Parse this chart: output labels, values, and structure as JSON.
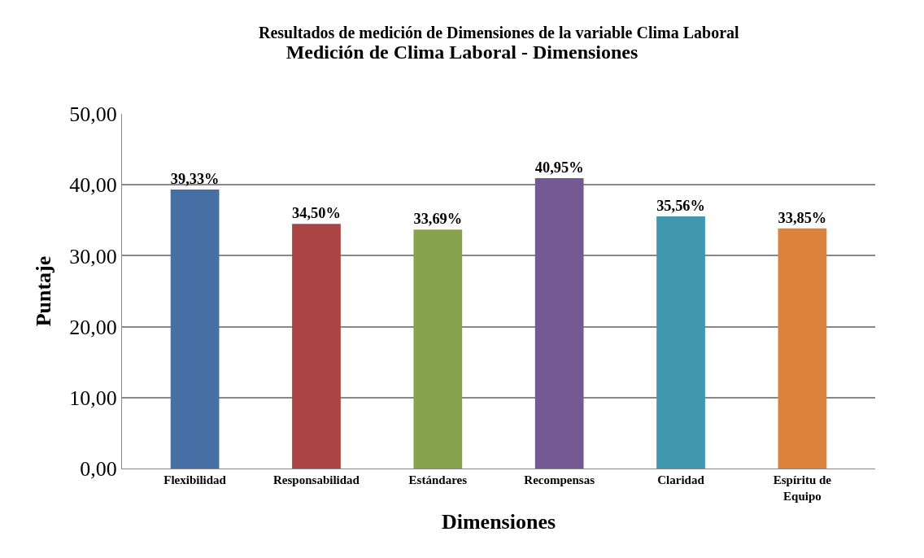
{
  "chart_data": {
    "type": "bar",
    "title": "Medición de Clima Laboral - Dimensiones",
    "xlabel": "Dimensiones",
    "ylabel": "Puntaje",
    "annotations": [
      "Resultados de medición de Dimensiones de la variable Clima Laboral"
    ],
    "categories": [
      "Flexibilidad",
      "Responsabilidad",
      "Estándares",
      "Recompensas",
      "Claridad",
      "Espíritu de Equipo"
    ],
    "values": [
      39.33,
      34.5,
      33.69,
      40.95,
      35.56,
      33.85
    ],
    "value_labels": [
      "39,33%",
      "34,50%",
      "33,69%",
      "40,95%",
      "35,56%",
      "33,85%"
    ],
    "colors": [
      "#4670a5",
      "#a94542",
      "#88a34d",
      "#735891",
      "#4097b0",
      "#db823c"
    ],
    "ylim": [
      0,
      50
    ],
    "yticks": [
      {
        "value": 0,
        "label": "0,00"
      },
      {
        "value": 10,
        "label": "10,00"
      },
      {
        "value": 20,
        "label": "20,00"
      },
      {
        "value": 30,
        "label": "30,00"
      },
      {
        "value": 40,
        "label": "40,00"
      },
      {
        "value": 50,
        "label": "50,00"
      }
    ],
    "grid": "y"
  }
}
